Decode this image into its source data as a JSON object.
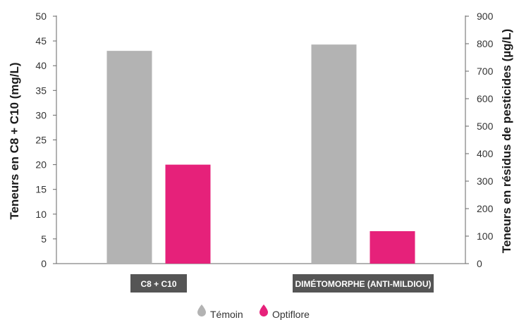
{
  "chart_data": {
    "type": "bar",
    "categories": [
      "C8 + C10",
      "DIMÉTOMORPHE (ANTI-MILDIOU)"
    ],
    "series": [
      {
        "name": "Témoin",
        "color": "#b3b3b3",
        "axis": "left",
        "values": [
          43,
          null
        ]
      },
      {
        "name": "Optiflore",
        "color": "#e6217a",
        "axis": "left",
        "values": [
          20,
          null
        ]
      },
      {
        "name": "Témoin",
        "color": "#b3b3b3",
        "axis": "right",
        "values": [
          null,
          797
        ]
      },
      {
        "name": "Optiflore",
        "color": "#e6217a",
        "axis": "right",
        "values": [
          null,
          118
        ]
      }
    ],
    "ylabel": "Teneurs en C8 + C10 (mg/L)",
    "y2label": "Teneurs en résidus de pesticides (µg/L)",
    "ylim": [
      0,
      50
    ],
    "y2lim": [
      0,
      900
    ],
    "yticks": [
      "0",
      "5",
      "10",
      "15",
      "20",
      "25",
      "30",
      "35",
      "40",
      "45",
      "50"
    ],
    "y2ticks": [
      "0",
      "100",
      "200",
      "300",
      "400",
      "500",
      "600",
      "700",
      "800",
      "900"
    ],
    "legend": {
      "position": "bottom",
      "items": [
        "Témoin",
        "Optiflore"
      ]
    },
    "grid": false,
    "category_label_bg": "#555555"
  }
}
